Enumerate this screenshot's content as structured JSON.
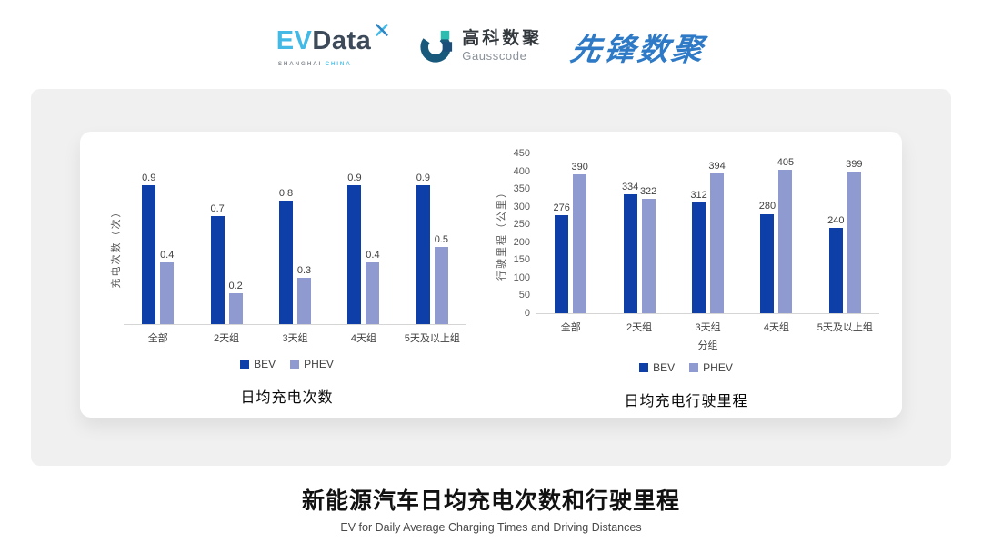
{
  "page": {
    "background": "#FFFFFF",
    "panel_background": "#F0F0F0",
    "card_background": "#FFFFFF",
    "axis_line_color": "#D5D5D5"
  },
  "header": {
    "evdata_logo": {
      "ev": "EV",
      "data": "Data",
      "sub_shanghai": "SHANGHAI",
      "sub_china": "CHINA",
      "icon": "pinwheel-x-icon",
      "colors": {
        "ev": "#45B9E6",
        "data": "#3C4A59",
        "sub_shanghai": "#8A9096",
        "sub_china": "#56C3E6",
        "pin_light": "#47BBE8",
        "pin_dark": "#2E86C5"
      }
    },
    "gausscode_logo": {
      "cn": "高科数聚",
      "en": "Gausscode",
      "icon": "g-mark-icon",
      "colors": {
        "arc": "#19597B",
        "square_teal": "#2FBCB0",
        "square_blue": "#1B4E7A",
        "cn": "#33383D",
        "en": "#8A9199"
      }
    },
    "pioneer_logo": {
      "cn": "先锋数聚",
      "color": "#2E7AC6"
    }
  },
  "chart_data": [
    {
      "type": "bar",
      "title": "日均充电次数",
      "xlabel": "",
      "ylabel": "充电次数（次）",
      "categories": [
        "全部",
        "2天组",
        "3天组",
        "4天组",
        "5天及以上组"
      ],
      "series": [
        {
          "name": "BEV",
          "color": "#0E3EA8",
          "values": [
            0.9,
            0.7,
            0.8,
            0.9,
            0.9
          ]
        },
        {
          "name": "PHEV",
          "color": "#8F9AD0",
          "values": [
            0.4,
            0.2,
            0.3,
            0.4,
            0.5
          ]
        }
      ],
      "ylim": [
        0,
        1.0
      ],
      "yticks": [],
      "y_axis_labels_visible": false,
      "grid": false,
      "legend_position": "bottom",
      "data_labels": true
    },
    {
      "type": "bar",
      "title": "日均充电行驶里程",
      "xlabel": "分组",
      "ylabel": "行驶里程（公里）",
      "categories": [
        "全部",
        "2天组",
        "3天组",
        "4天组",
        "5天及以上组"
      ],
      "series": [
        {
          "name": "BEV",
          "color": "#0E3EA8",
          "values": [
            276,
            334,
            312,
            280,
            240
          ]
        },
        {
          "name": "PHEV",
          "color": "#8F9AD0",
          "values": [
            390,
            322,
            394,
            405,
            399
          ]
        }
      ],
      "ylim": [
        0,
        450
      ],
      "yticks": [
        450,
        400,
        350,
        300,
        250,
        200,
        150,
        100,
        50,
        0
      ],
      "y_axis_labels_visible": true,
      "grid": false,
      "legend_position": "bottom",
      "data_labels": true
    }
  ],
  "footer": {
    "title": "新能源汽车日均充电次数和行驶里程",
    "subtitle": "EV for Daily Average Charging Times and Driving Distances"
  }
}
